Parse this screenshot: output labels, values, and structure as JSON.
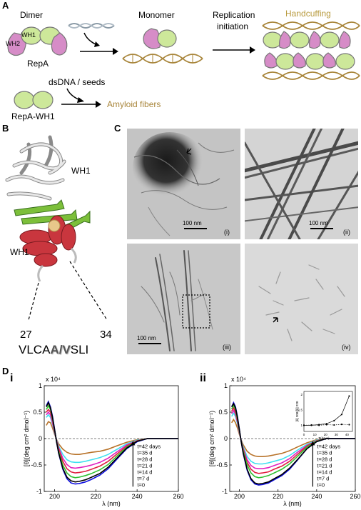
{
  "panelA": {
    "letter": "A",
    "dimer_label": "Dimer",
    "wh1_label": "WH1",
    "wh2_label": "WH2",
    "repa_label": "RepA",
    "monomer_label": "Monomer",
    "replication_label_line1": "Replication",
    "replication_label_line2": "initiation",
    "handcuffing_label": "Handcuffing",
    "dsdna_label": "dsDNA / seeds",
    "repa_wh1_label": "RepA-WH1",
    "amyloid_label": "Amyloid fibers"
  },
  "panelB": {
    "letter": "B",
    "wh1_top": "WH1",
    "wh1_bottom": "WH1",
    "residue_start": "27",
    "residue_end": "34",
    "seq_prefix": "VLCA",
    "seq_mut": "A/V",
    "seq_suffix": "SLI"
  },
  "panelC": {
    "letter": "C",
    "images": [
      {
        "roman": "(i)",
        "scale": "100 nm"
      },
      {
        "roman": "(ii)",
        "scale": "100 nm"
      },
      {
        "roman": "(iii)",
        "scale": "100 nm"
      },
      {
        "roman": "(iv)",
        "scale": ""
      }
    ]
  },
  "panelD": {
    "letter": "D",
    "colors": {
      "t42": "#b8732a",
      "t35": "#40e0f0",
      "t28": "#e020c0",
      "t21": "#e02040",
      "t14": "#30c030",
      "t7": "#1010e0",
      "t0": "#000000"
    }
  },
  "chart_data": [
    {
      "type": "line",
      "roman": "i",
      "xlabel": "λ (nm)",
      "ylabel": "[θ](deg cm² dmol⁻¹)",
      "exponent": "x 10⁴",
      "xlim": [
        195,
        260
      ],
      "ylim": [
        -1,
        1
      ],
      "xticks": [
        "200",
        "220",
        "240",
        "260"
      ],
      "yticks": [
        "1",
        "0.5",
        "0",
        "-0.5",
        "-1"
      ],
      "legend": [
        "t=42 days",
        "t=35 d",
        "t=28 d",
        "t=21 d",
        "t=14 d",
        "t=7 d",
        "t=0"
      ],
      "x": [
        196,
        197,
        198,
        199,
        200,
        201,
        202,
        204,
        206,
        208,
        210,
        212,
        215,
        218,
        222,
        226,
        230,
        235,
        240,
        245,
        250,
        260
      ],
      "series": [
        {
          "name": "t=42 days",
          "color": "#b8732a",
          "values": [
            0.25,
            0.32,
            0.3,
            0.2,
            0.08,
            -0.02,
            -0.1,
            -0.2,
            -0.26,
            -0.29,
            -0.3,
            -0.3,
            -0.28,
            -0.26,
            -0.24,
            -0.2,
            -0.14,
            -0.07,
            -0.02,
            0,
            0,
            0
          ]
        },
        {
          "name": "t=35 d",
          "color": "#40e0f0",
          "values": [
            0.4,
            0.45,
            0.4,
            0.27,
            0.1,
            -0.03,
            -0.14,
            -0.3,
            -0.4,
            -0.44,
            -0.45,
            -0.45,
            -0.43,
            -0.4,
            -0.36,
            -0.3,
            -0.21,
            -0.1,
            -0.03,
            0,
            0,
            0
          ]
        },
        {
          "name": "t=28 d",
          "color": "#e020c0",
          "values": [
            0.45,
            0.5,
            0.45,
            0.3,
            0.12,
            -0.04,
            -0.17,
            -0.37,
            -0.49,
            -0.55,
            -0.56,
            -0.55,
            -0.53,
            -0.5,
            -0.45,
            -0.37,
            -0.26,
            -0.12,
            -0.04,
            0,
            0,
            0
          ]
        },
        {
          "name": "t=21 d",
          "color": "#e02040",
          "values": [
            0.5,
            0.55,
            0.5,
            0.35,
            0.14,
            -0.05,
            -0.2,
            -0.43,
            -0.57,
            -0.63,
            -0.65,
            -0.64,
            -0.62,
            -0.58,
            -0.52,
            -0.43,
            -0.3,
            -0.14,
            -0.04,
            0,
            0,
            0
          ]
        },
        {
          "name": "t=14 d",
          "color": "#30c030",
          "values": [
            0.55,
            0.62,
            0.55,
            0.38,
            0.16,
            -0.06,
            -0.24,
            -0.5,
            -0.65,
            -0.72,
            -0.74,
            -0.73,
            -0.7,
            -0.66,
            -0.59,
            -0.49,
            -0.34,
            -0.16,
            -0.05,
            0,
            0,
            0
          ]
        },
        {
          "name": "t=7 d",
          "color": "#1010e0",
          "values": [
            0.62,
            0.7,
            0.6,
            0.42,
            0.18,
            -0.07,
            -0.28,
            -0.58,
            -0.76,
            -0.84,
            -0.86,
            -0.85,
            -0.82,
            -0.77,
            -0.69,
            -0.57,
            -0.4,
            -0.19,
            -0.06,
            0,
            0,
            0
          ]
        },
        {
          "name": "t=0",
          "color": "#000000",
          "values": [
            0.6,
            0.68,
            0.58,
            0.4,
            0.17,
            -0.07,
            -0.27,
            -0.56,
            -0.73,
            -0.8,
            -0.82,
            -0.81,
            -0.78,
            -0.73,
            -0.66,
            -0.54,
            -0.38,
            -0.18,
            -0.05,
            0,
            0,
            0
          ]
        }
      ]
    },
    {
      "type": "line",
      "roman": "ii",
      "xlabel": "λ (nm)",
      "ylabel": "[θ](deg cm² dmol⁻¹)",
      "exponent": "x 10⁴",
      "xlim": [
        195,
        260
      ],
      "ylim": [
        -1,
        1
      ],
      "xticks": [
        "200",
        "220",
        "240",
        "260"
      ],
      "yticks": [
        "1",
        "0.5",
        "0",
        "-0.5",
        "-1"
      ],
      "legend": [
        "t=42 days",
        "t=35 d",
        "t=28 d",
        "t=21 d",
        "t=14 d",
        "t=7 d",
        "t=0"
      ],
      "x": [
        196,
        197,
        198,
        199,
        200,
        201,
        202,
        204,
        206,
        208,
        210,
        212,
        215,
        218,
        222,
        226,
        230,
        235,
        240,
        245,
        250,
        260
      ],
      "series": [
        {
          "name": "t=42 days",
          "color": "#b8732a",
          "values": [
            0.3,
            0.36,
            0.3,
            0.2,
            0.08,
            -0.03,
            -0.12,
            -0.24,
            -0.3,
            -0.33,
            -0.34,
            -0.34,
            -0.33,
            -0.31,
            -0.28,
            -0.23,
            -0.16,
            -0.08,
            -0.02,
            0,
            0,
            0
          ]
        },
        {
          "name": "t=35 d",
          "color": "#40e0f0",
          "values": [
            0.42,
            0.48,
            0.42,
            0.28,
            0.11,
            -0.04,
            -0.16,
            -0.34,
            -0.43,
            -0.47,
            -0.48,
            -0.48,
            -0.46,
            -0.43,
            -0.39,
            -0.32,
            -0.22,
            -0.11,
            -0.03,
            0,
            0,
            0
          ]
        },
        {
          "name": "t=28 d",
          "color": "#e020c0",
          "values": [
            0.47,
            0.53,
            0.46,
            0.31,
            0.12,
            -0.05,
            -0.19,
            -0.4,
            -0.51,
            -0.56,
            -0.57,
            -0.57,
            -0.55,
            -0.51,
            -0.46,
            -0.38,
            -0.26,
            -0.13,
            -0.04,
            0,
            0,
            0
          ]
        },
        {
          "name": "t=21 d",
          "color": "#e02040",
          "values": [
            0.52,
            0.58,
            0.5,
            0.34,
            0.14,
            -0.05,
            -0.21,
            -0.45,
            -0.58,
            -0.64,
            -0.66,
            -0.65,
            -0.63,
            -0.58,
            -0.52,
            -0.43,
            -0.3,
            -0.14,
            -0.04,
            0,
            0,
            0
          ]
        },
        {
          "name": "t=14 d",
          "color": "#30c030",
          "values": [
            0.56,
            0.63,
            0.55,
            0.37,
            0.15,
            -0.06,
            -0.24,
            -0.5,
            -0.65,
            -0.72,
            -0.74,
            -0.73,
            -0.7,
            -0.65,
            -0.58,
            -0.48,
            -0.34,
            -0.16,
            -0.05,
            0,
            0,
            0
          ]
        },
        {
          "name": "t=7 d",
          "color": "#1010e0",
          "values": [
            0.6,
            0.68,
            0.6,
            0.42,
            0.18,
            -0.07,
            -0.29,
            -0.6,
            -0.78,
            -0.86,
            -0.88,
            -0.87,
            -0.84,
            -0.78,
            -0.7,
            -0.58,
            -0.41,
            -0.19,
            -0.06,
            0,
            0,
            0
          ]
        },
        {
          "name": "t=0",
          "color": "#000000",
          "values": [
            0.6,
            0.66,
            0.58,
            0.4,
            0.17,
            -0.07,
            -0.28,
            -0.58,
            -0.76,
            -0.84,
            -0.86,
            -0.85,
            -0.82,
            -0.76,
            -0.68,
            -0.56,
            -0.4,
            -0.19,
            -0.06,
            0,
            0,
            0
          ]
        }
      ],
      "inset": {
        "xlabel": "T(days)",
        "ylabel": "[θ] 208/[θ] 220",
        "xticks": [
          "0",
          "10",
          "20",
          "30",
          "40"
        ],
        "yticks": [
          "1",
          "1.5",
          "2"
        ],
        "x": [
          0,
          7,
          14,
          21,
          28,
          35,
          42
        ],
        "series": [
          {
            "values": [
              1.0,
              1.0,
              1.02,
              1.05,
              1.15,
              1.35,
              1.95
            ]
          },
          {
            "values": [
              1.0,
              1.01,
              1.0,
              1.02,
              1.01,
              1.03,
              1.02
            ]
          }
        ]
      }
    }
  ]
}
